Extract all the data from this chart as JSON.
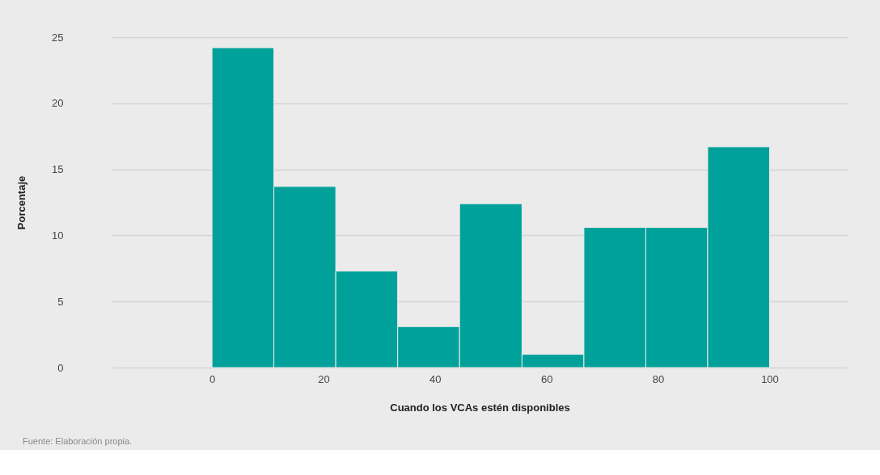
{
  "chart_data": {
    "type": "histogram",
    "xlabel": "Cuando los VCAs estén disponibles",
    "ylabel": "Porcentaje",
    "bins": [
      0,
      11.1,
      22.2,
      33.3,
      44.4,
      55.6,
      66.7,
      77.8,
      88.9,
      100
    ],
    "values": [
      24.2,
      13.7,
      7.3,
      3.1,
      12.4,
      1.0,
      10.6,
      10.6,
      16.7
    ],
    "color": "#00a19a",
    "xlim": [
      -18,
      114
    ],
    "xticks": [
      0,
      20,
      40,
      60,
      80,
      100
    ],
    "ylim": [
      0,
      25
    ],
    "yticks": [
      0,
      5,
      10,
      15,
      20,
      25
    ],
    "grid": "y",
    "annotations": [
      "Fuente: Elaboración propia."
    ]
  }
}
